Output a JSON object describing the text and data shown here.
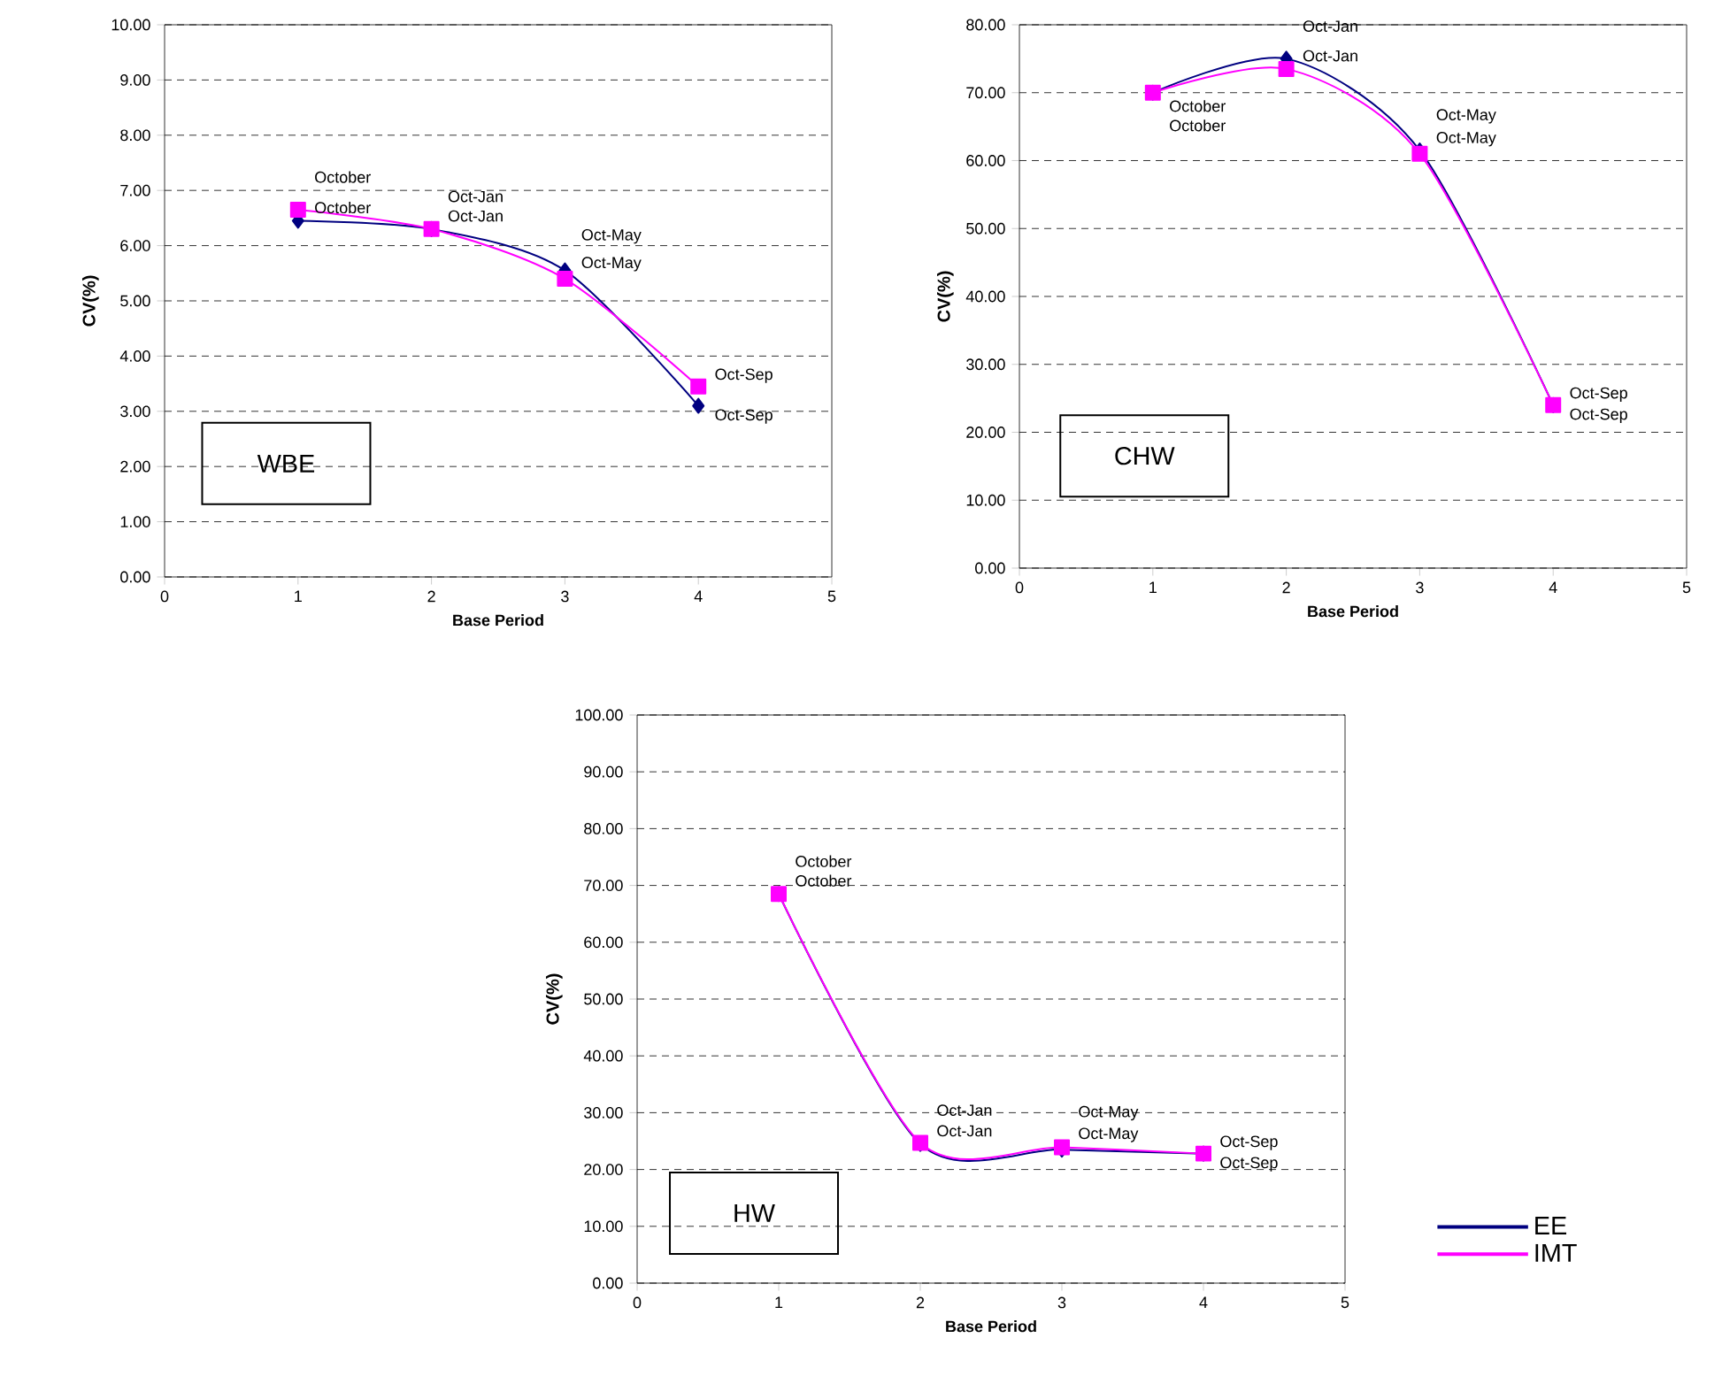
{
  "chart_data": [
    {
      "type": "line",
      "xlabel": "Base Period",
      "ylabel": "CV(%)",
      "annotations": [
        "WBE"
      ],
      "x": [
        1,
        2,
        3,
        4
      ],
      "xlim": [
        0,
        5
      ],
      "xticks": [
        0,
        1,
        2,
        3,
        4,
        5
      ],
      "ylim": [
        0,
        10
      ],
      "yticks": [
        {
          "value": 0,
          "label": "0.00"
        },
        {
          "value": 1,
          "label": "1.00"
        },
        {
          "value": 2,
          "label": "2.00"
        },
        {
          "value": 3,
          "label": "3.00"
        },
        {
          "value": 4,
          "label": "4.00"
        },
        {
          "value": 5,
          "label": "5.00"
        },
        {
          "value": 6,
          "label": "6.00"
        },
        {
          "value": 7,
          "label": "7.00"
        },
        {
          "value": 8,
          "label": "8.00"
        },
        {
          "value": 9,
          "label": "9.00"
        },
        {
          "value": 10,
          "label": "10.00"
        }
      ],
      "grid": "y",
      "series": [
        {
          "color": "#000080",
          "marker": "diamond",
          "values": [
            6.45,
            6.3,
            5.55,
            3.1
          ],
          "value_labels": [
            "October",
            "Oct-Jan",
            "Oct-May",
            "Oct-Sep"
          ]
        },
        {
          "color": "#ff00ff",
          "marker": "square",
          "values": [
            6.65,
            6.3,
            5.4,
            3.45
          ],
          "value_labels": [
            "October",
            "Oct-Jan",
            "Oct-May",
            "Oct-Sep"
          ]
        }
      ]
    },
    {
      "type": "line",
      "xlabel": "Base Period",
      "ylabel": "CV(%)",
      "annotations": [
        "CHW"
      ],
      "x": [
        1,
        2,
        3,
        4
      ],
      "xlim": [
        0,
        5
      ],
      "xticks": [
        0,
        1,
        2,
        3,
        4,
        5
      ],
      "ylim": [
        0,
        80
      ],
      "yticks": [
        {
          "value": 0,
          "label": "0.00"
        },
        {
          "value": 10,
          "label": "10.00"
        },
        {
          "value": 20,
          "label": "20.00"
        },
        {
          "value": 30,
          "label": "30.00"
        },
        {
          "value": 40,
          "label": "40.00"
        },
        {
          "value": 50,
          "label": "50.00"
        },
        {
          "value": 60,
          "label": "60.00"
        },
        {
          "value": 70,
          "label": "70.00"
        },
        {
          "value": 80,
          "label": "80.00"
        }
      ],
      "grid": "y",
      "series": [
        {
          "color": "#000080",
          "marker": "diamond",
          "values": [
            70,
            75,
            61.5,
            24
          ],
          "value_labels": [
            "October",
            "Oct-Jan",
            "Oct-May",
            "Oct-Sep"
          ]
        },
        {
          "color": "#ff00ff",
          "marker": "square",
          "values": [
            70,
            73.5,
            61,
            24
          ],
          "value_labels": [
            "October",
            "Oct-Jan",
            "Oct-May",
            "Oct-Sep"
          ]
        }
      ]
    },
    {
      "type": "line",
      "xlabel": "Base Period",
      "ylabel": "CV(%)",
      "annotations": [
        "HW"
      ],
      "x": [
        1,
        2,
        3,
        4
      ],
      "xlim": [
        0,
        5
      ],
      "xticks": [
        0,
        1,
        2,
        3,
        4,
        5
      ],
      "ylim": [
        0,
        100
      ],
      "yticks": [
        {
          "value": 0,
          "label": "0.00"
        },
        {
          "value": 10,
          "label": "10.00"
        },
        {
          "value": 20,
          "label": "20.00"
        },
        {
          "value": 30,
          "label": "30.00"
        },
        {
          "value": 40,
          "label": "40.00"
        },
        {
          "value": 50,
          "label": "50.00"
        },
        {
          "value": 60,
          "label": "60.00"
        },
        {
          "value": 70,
          "label": "70.00"
        },
        {
          "value": 80,
          "label": "80.00"
        },
        {
          "value": 90,
          "label": "90.00"
        },
        {
          "value": 100,
          "label": "100.00"
        }
      ],
      "grid": "y",
      "legend": "right",
      "series": [
        {
          "name": "EE",
          "color": "#000080",
          "marker": "diamond",
          "values": [
            68.5,
            24.5,
            23.5,
            22.8
          ],
          "value_labels": [
            "October",
            "Oct-Jan",
            "Oct-May",
            "Oct-Sep"
          ]
        },
        {
          "name": "IMT",
          "color": "#ff00ff",
          "marker": "square",
          "values": [
            68.5,
            24.7,
            23.9,
            22.8
          ],
          "value_labels": [
            "October",
            "Oct-Jan",
            "Oct-May",
            "Oct-Sep"
          ]
        }
      ]
    }
  ]
}
